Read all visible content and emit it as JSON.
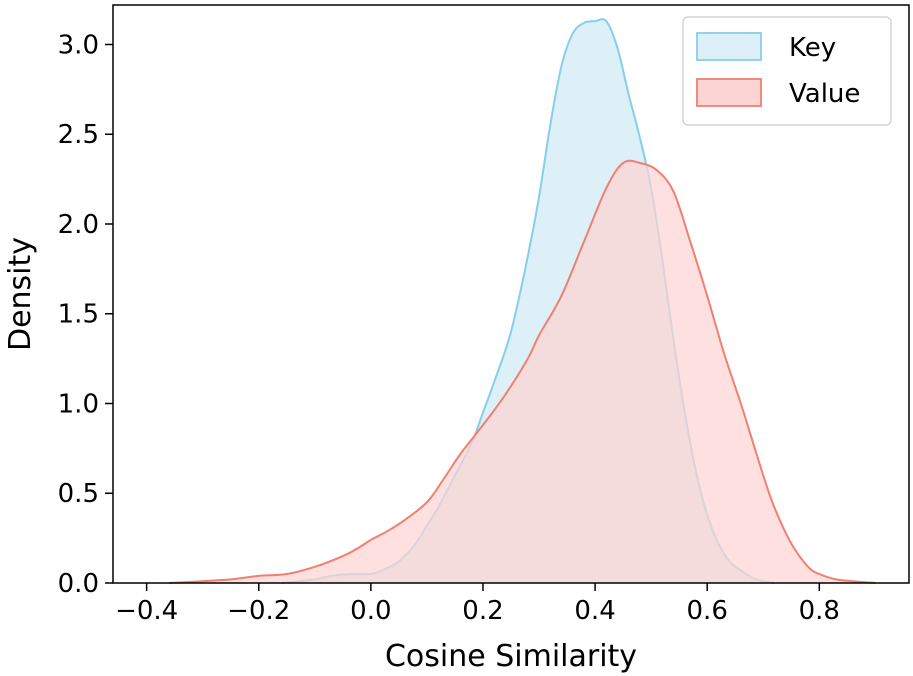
{
  "chart_data": {
    "type": "area",
    "xlabel": "Cosine Similarity",
    "ylabel": "Density",
    "xlim": [
      -0.46,
      0.96
    ],
    "ylim": [
      0.0,
      3.22
    ],
    "xticks": [
      -0.4,
      -0.2,
      0.0,
      0.2,
      0.4,
      0.6,
      0.8
    ],
    "xtick_labels": [
      "−0.4",
      "−0.2",
      "0.0",
      "0.2",
      "0.4",
      "0.6",
      "0.8"
    ],
    "yticks": [
      0.0,
      0.5,
      1.0,
      1.5,
      2.0,
      2.5,
      3.0
    ],
    "ytick_labels": [
      "0.0",
      "0.5",
      "1.0",
      "1.5",
      "2.0",
      "2.5",
      "3.0"
    ],
    "grid": false,
    "legend_position": "top-right",
    "series": [
      {
        "name": "Key",
        "fill": "#ddf0f8",
        "stroke": "#87ceeb",
        "x": [
          -0.16,
          -0.1,
          -0.07,
          -0.03,
          0.0,
          0.02,
          0.05,
          0.08,
          0.1,
          0.12,
          0.15,
          0.18,
          0.2,
          0.22,
          0.25,
          0.28,
          0.3,
          0.32,
          0.34,
          0.36,
          0.38,
          0.4,
          0.42,
          0.44,
          0.46,
          0.48,
          0.5,
          0.52,
          0.54,
          0.56,
          0.58,
          0.6,
          0.62,
          0.64,
          0.66,
          0.68,
          0.7,
          0.72
        ],
        "y": [
          0.0,
          0.02,
          0.04,
          0.05,
          0.05,
          0.07,
          0.12,
          0.22,
          0.32,
          0.42,
          0.6,
          0.78,
          0.95,
          1.12,
          1.4,
          1.82,
          2.15,
          2.55,
          2.88,
          3.06,
          3.12,
          3.13,
          3.13,
          2.98,
          2.72,
          2.48,
          2.2,
          1.8,
          1.35,
          0.95,
          0.62,
          0.38,
          0.22,
          0.12,
          0.07,
          0.03,
          0.01,
          0.0
        ]
      },
      {
        "name": "Value",
        "fill": "#fcd4d3",
        "stroke": "#f08070",
        "x": [
          -0.36,
          -0.3,
          -0.25,
          -0.2,
          -0.15,
          -0.1,
          -0.05,
          -0.02,
          0.0,
          0.03,
          0.06,
          0.1,
          0.13,
          0.16,
          0.2,
          0.24,
          0.28,
          0.3,
          0.34,
          0.38,
          0.42,
          0.45,
          0.48,
          0.51,
          0.54,
          0.57,
          0.6,
          0.63,
          0.66,
          0.68,
          0.7,
          0.72,
          0.75,
          0.78,
          0.8,
          0.83,
          0.86,
          0.9
        ],
        "y": [
          0.0,
          0.01,
          0.02,
          0.04,
          0.05,
          0.09,
          0.15,
          0.2,
          0.24,
          0.29,
          0.35,
          0.45,
          0.58,
          0.72,
          0.88,
          1.05,
          1.25,
          1.38,
          1.6,
          1.9,
          2.2,
          2.34,
          2.34,
          2.3,
          2.18,
          1.9,
          1.6,
          1.28,
          1.0,
          0.8,
          0.6,
          0.42,
          0.22,
          0.09,
          0.05,
          0.02,
          0.01,
          0.0
        ]
      }
    ]
  }
}
